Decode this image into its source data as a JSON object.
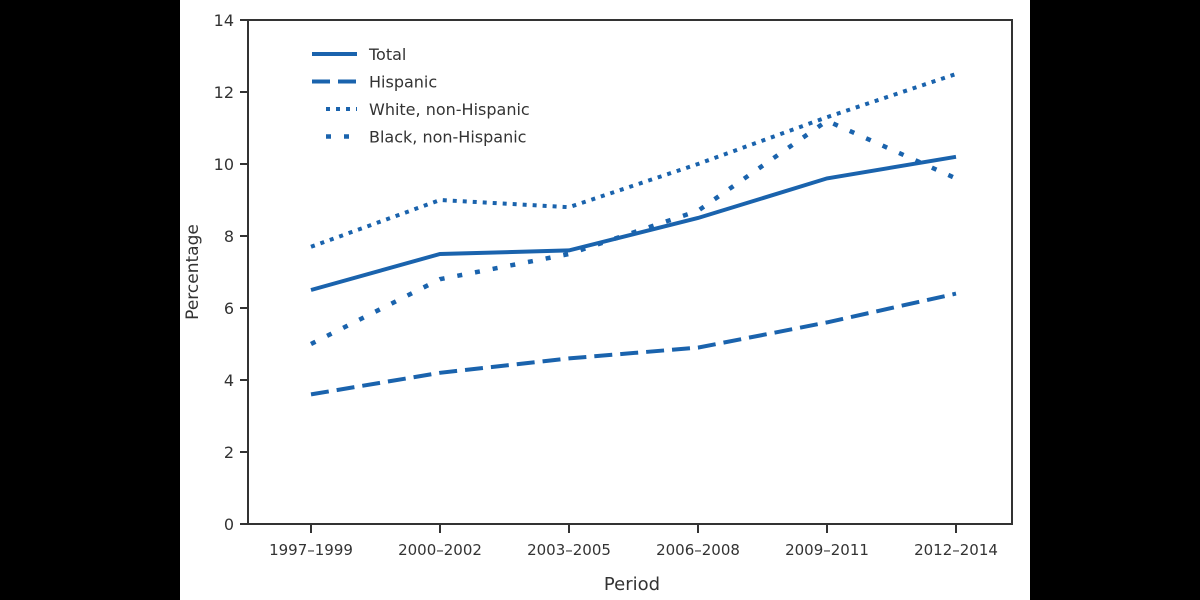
{
  "chart_data": {
    "type": "line",
    "title": "",
    "xlabel": "Period",
    "ylabel": "Percentage",
    "categories": [
      "1997–1999",
      "2000–2002",
      "2003–2005",
      "2006–2008",
      "2009–2011",
      "2012–2014"
    ],
    "ylim": [
      0,
      14
    ],
    "yticks": [
      0,
      2,
      4,
      6,
      8,
      10,
      12,
      14
    ],
    "ytick_labels": [
      "0",
      "2",
      "4",
      "6",
      "8",
      "10",
      "12",
      "14"
    ],
    "grid": false,
    "legend_position": "top-left",
    "colors": {
      "line": "#1a63ad",
      "axis": "#333333"
    },
    "series": [
      {
        "name": "Total",
        "style": "solid",
        "values": [
          6.5,
          7.5,
          7.6,
          8.5,
          9.6,
          10.2
        ]
      },
      {
        "name": "Hispanic",
        "style": "dashed",
        "values": [
          3.6,
          4.2,
          4.6,
          4.9,
          5.6,
          6.4
        ]
      },
      {
        "name": "White, non-Hispanic",
        "style": "dotted",
        "values": [
          7.7,
          9.0,
          8.8,
          10.0,
          11.3,
          12.5
        ]
      },
      {
        "name": "Black, non-Hispanic",
        "style": "sparse-dotted",
        "values": [
          5.0,
          6.8,
          7.5,
          8.7,
          11.2,
          9.6
        ]
      }
    ]
  }
}
